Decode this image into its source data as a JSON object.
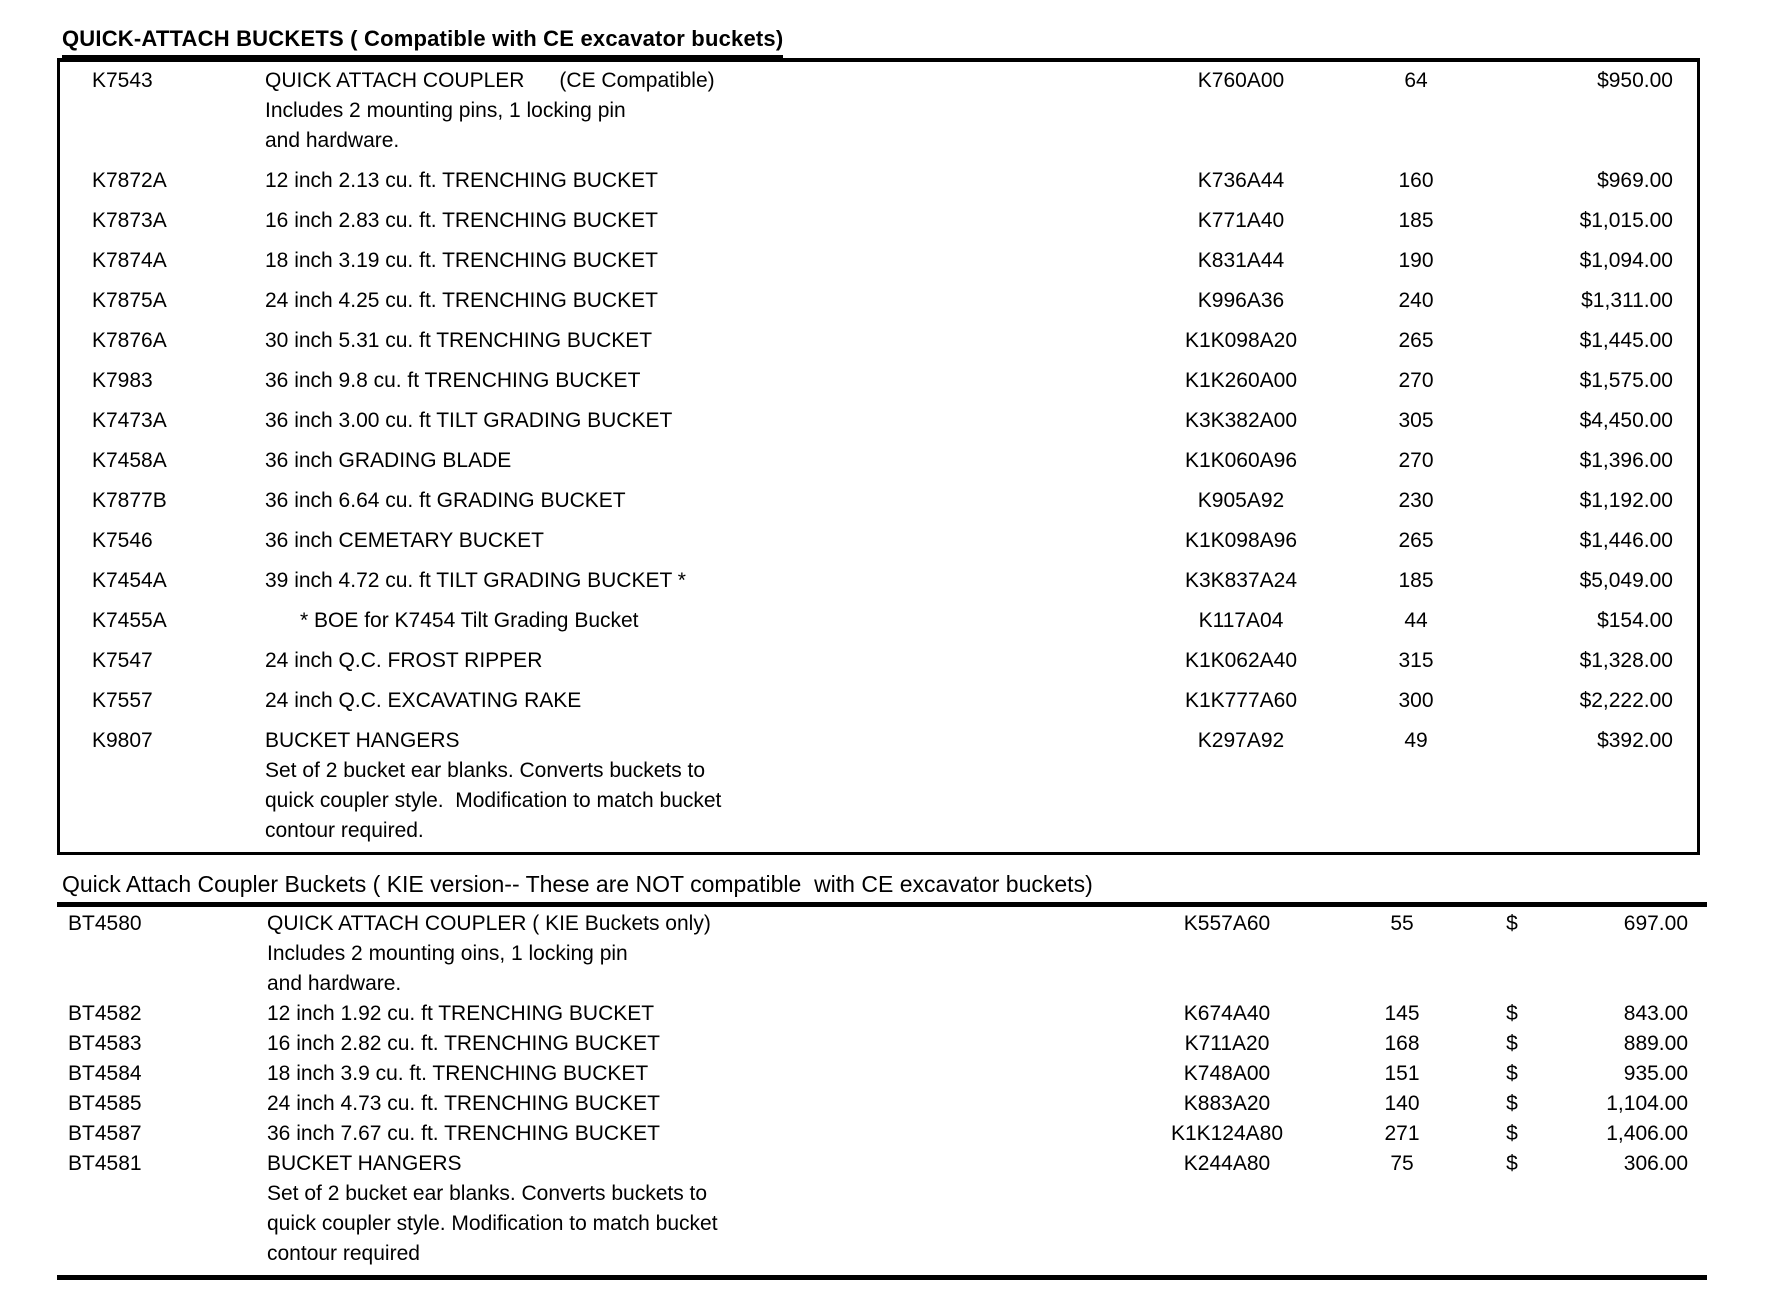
{
  "section1": {
    "title": "QUICK-ATTACH BUCKETS ( Compatible with CE excavator buckets)",
    "rows": [
      {
        "part": "K7543",
        "desc": "QUICK ATTACH COUPLER      (CE Compatible)",
        "notes": [
          "Includes 2 mounting pins, 1 locking pin",
          "and hardware."
        ],
        "code": "K760A00",
        "weight": "64",
        "price": "$950.00"
      },
      {
        "part": "K7872A",
        "desc": "12 inch 2.13 cu. ft. TRENCHING BUCKET",
        "notes": [],
        "code": "K736A44",
        "weight": "160",
        "price": "$969.00"
      },
      {
        "part": "K7873A",
        "desc": "16 inch 2.83 cu. ft. TRENCHING BUCKET",
        "notes": [],
        "code": "K771A40",
        "weight": "185",
        "price": "$1,015.00"
      },
      {
        "part": "K7874A",
        "desc": "18 inch 3.19 cu. ft. TRENCHING BUCKET",
        "notes": [],
        "code": "K831A44",
        "weight": "190",
        "price": "$1,094.00"
      },
      {
        "part": "K7875A",
        "desc": "24 inch 4.25 cu. ft. TRENCHING BUCKET",
        "notes": [],
        "code": "K996A36",
        "weight": "240",
        "price": "$1,311.00"
      },
      {
        "part": "K7876A",
        "desc": "30 inch 5.31 cu. ft TRENCHING BUCKET",
        "notes": [],
        "code": "K1K098A20",
        "weight": "265",
        "price": "$1,445.00"
      },
      {
        "part": "K7983",
        "desc": "36 inch 9.8 cu. ft TRENCHING BUCKET",
        "notes": [],
        "code": "K1K260A00",
        "weight": "270",
        "price": "$1,575.00"
      },
      {
        "part": "K7473A",
        "desc": "36 inch 3.00 cu. ft TILT GRADING BUCKET",
        "notes": [],
        "code": "K3K382A00",
        "weight": "305",
        "price": "$4,450.00"
      },
      {
        "part": "K7458A",
        "desc": "36 inch GRADING BLADE",
        "notes": [],
        "code": "K1K060A96",
        "weight": "270",
        "price": "$1,396.00"
      },
      {
        "part": "K7877B",
        "desc": "36 inch 6.64 cu. ft GRADING BUCKET",
        "notes": [],
        "code": "K905A92",
        "weight": "230",
        "price": "$1,192.00"
      },
      {
        "part": "K7546",
        "desc": "36 inch CEMETARY BUCKET",
        "notes": [],
        "code": "K1K098A96",
        "weight": "265",
        "price": "$1,446.00"
      },
      {
        "part": "K7454A",
        "desc": "39 inch 4.72 cu. ft TILT GRADING BUCKET *",
        "notes": [],
        "code": "K3K837A24",
        "weight": "185",
        "price": "$5,049.00"
      },
      {
        "part": "K7455A",
        "desc": "      * BOE for K7454 Tilt Grading Bucket",
        "notes": [],
        "code": "K117A04",
        "weight": "44",
        "price": "$154.00"
      },
      {
        "part": "K7547",
        "desc": "24 inch Q.C. FROST RIPPER",
        "notes": [],
        "code": "K1K062A40",
        "weight": "315",
        "price": "$1,328.00"
      },
      {
        "part": "K7557",
        "desc": "24 inch Q.C. EXCAVATING RAKE",
        "notes": [],
        "code": "K1K777A60",
        "weight": "300",
        "price": "$2,222.00"
      },
      {
        "part": "K9807",
        "desc": "BUCKET HANGERS",
        "notes": [
          "Set of 2 bucket ear blanks. Converts buckets to",
          "quick coupler style.  Modification to match bucket",
          "contour required."
        ],
        "code": "K297A92",
        "weight": "49",
        "price": "$392.00"
      }
    ]
  },
  "section2": {
    "title": "Quick Attach Coupler Buckets ( KIE version-- These are NOT compatible  with CE excavator buckets)",
    "rows": [
      {
        "part": "BT4580",
        "desc": "QUICK ATTACH COUPLER ( KIE Buckets only)",
        "notes": [
          "Includes 2 mounting oins, 1 locking pin",
          "and hardware."
        ],
        "code": "K557A60",
        "weight": "55",
        "currency": "$",
        "price": "697.00"
      },
      {
        "part": "BT4582",
        "desc": "12 inch 1.92 cu. ft TRENCHING BUCKET",
        "notes": [],
        "code": "K674A40",
        "weight": "145",
        "currency": "$",
        "price": "843.00"
      },
      {
        "part": "BT4583",
        "desc": "16 inch 2.82 cu. ft. TRENCHING BUCKET",
        "notes": [],
        "code": "K711A20",
        "weight": "168",
        "currency": "$",
        "price": "889.00"
      },
      {
        "part": "BT4584",
        "desc": "18 inch 3.9 cu. ft. TRENCHING BUCKET",
        "notes": [],
        "code": "K748A00",
        "weight": "151",
        "currency": "$",
        "price": "935.00"
      },
      {
        "part": "BT4585",
        "desc": "24 inch 4.73 cu. ft. TRENCHING BUCKET",
        "notes": [],
        "code": "K883A20",
        "weight": "140",
        "currency": "$",
        "price": "1,104.00"
      },
      {
        "part": "BT4587",
        "desc": "36 inch 7.67 cu. ft. TRENCHING BUCKET",
        "notes": [],
        "code": "K1K124A80",
        "weight": "271",
        "currency": "$",
        "price": "1,406.00"
      },
      {
        "part": "BT4581",
        "desc": "BUCKET HANGERS",
        "notes": [
          "Set of 2 bucket ear blanks. Converts buckets to",
          "quick coupler style. Modification to match bucket",
          "contour required"
        ],
        "code": "K244A80",
        "weight": "75",
        "currency": "$",
        "price": "306.00"
      }
    ]
  }
}
